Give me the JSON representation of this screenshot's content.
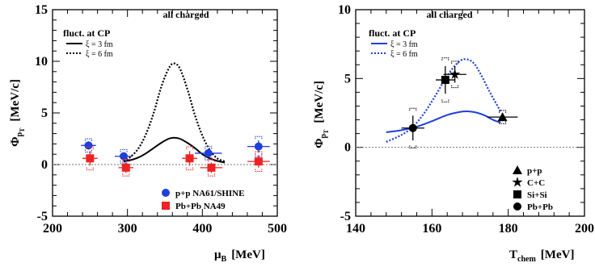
{
  "chart_data": [
    {
      "type": "line",
      "panel": "left",
      "title": "all charged",
      "legend_heading": "fluct. at CP",
      "xlabel": {
        "main": "μ",
        "sub": "B",
        "unit": "[MeV]"
      },
      "ylabel": {
        "main": "Φ",
        "sub": "p",
        "subsub": "T",
        "unit": "[MeV/c]"
      },
      "xlim": [
        200,
        500
      ],
      "ylim": [
        -5,
        15
      ],
      "xticks": [
        "200",
        "300",
        "400",
        "500"
      ],
      "yticks": [
        "-5",
        "0",
        "5",
        "10",
        "15"
      ],
      "series": [
        {
          "name": "ξ = 3 fm",
          "style": "solid",
          "color": "#000000",
          "x": [
            295,
            305,
            315,
            325,
            335,
            345,
            355,
            362,
            370,
            380,
            390,
            400,
            410,
            420,
            430
          ],
          "y": [
            0.3,
            0.45,
            0.7,
            1.1,
            1.6,
            2.1,
            2.5,
            2.6,
            2.5,
            2.1,
            1.6,
            1.0,
            0.6,
            0.35,
            0.2
          ]
        },
        {
          "name": "ξ = 6 fm",
          "style": "dotted",
          "color": "#000000",
          "x": [
            295,
            305,
            315,
            325,
            335,
            345,
            355,
            362,
            370,
            380,
            390,
            400,
            410,
            420,
            430
          ],
          "y": [
            0.3,
            0.8,
            1.6,
            3.0,
            5.0,
            7.5,
            9.3,
            9.8,
            9.3,
            7.3,
            4.8,
            2.8,
            1.4,
            0.6,
            0.3
          ]
        },
        {
          "name": "p+p NA61/SHINE",
          "style": "points",
          "marker": "circle",
          "color": "#1f3fdc",
          "x": [
            248,
            295,
            408,
            475
          ],
          "y": [
            1.85,
            0.8,
            1.1,
            1.75
          ],
          "xerr": [
            10,
            12,
            18,
            15
          ],
          "yerr": [
            0.4,
            0.4,
            0.4,
            0.6
          ]
        },
        {
          "name": "Pb+Pb NA49",
          "style": "points",
          "marker": "square",
          "color": "#ee2222",
          "x": [
            250,
            298,
            383,
            412,
            475
          ],
          "y": [
            0.6,
            -0.3,
            0.6,
            -0.3,
            0.3
          ],
          "xerr": [
            10,
            10,
            10,
            15,
            15
          ],
          "yerr": [
            0.7,
            0.5,
            0.7,
            0.5,
            0.6
          ]
        }
      ]
    },
    {
      "type": "line",
      "panel": "right",
      "title": "all charged",
      "legend_heading": "fluct. at CP",
      "xlabel": {
        "main": "T",
        "sub": "chem",
        "unit": "[MeV]"
      },
      "ylabel": {
        "main": "Φ",
        "sub": "p",
        "subsub": "T",
        "unit": "[MeV/c]"
      },
      "xlim": [
        140,
        200
      ],
      "ylim": [
        -5,
        10
      ],
      "xticks": [
        "140",
        "160",
        "180",
        "200"
      ],
      "yticks": [
        "-5",
        "0",
        "5",
        "10"
      ],
      "series": [
        {
          "name": "ξ = 3 fm",
          "style": "solid",
          "color": "#1f3fdc",
          "x": [
            148,
            152,
            156,
            160,
            164,
            168,
            170,
            172,
            174,
            176,
            178
          ],
          "y": [
            1.1,
            1.25,
            1.5,
            1.9,
            2.35,
            2.6,
            2.6,
            2.5,
            2.3,
            2.0,
            1.8
          ]
        },
        {
          "name": "ξ = 6 fm",
          "style": "dotted",
          "color": "#1f3fdc",
          "x": [
            148,
            152,
            155,
            158,
            161,
            164,
            167,
            169,
            171,
            173,
            175,
            177,
            178
          ],
          "y": [
            0.4,
            0.9,
            1.5,
            2.5,
            3.8,
            5.2,
            6.2,
            6.4,
            6.1,
            5.2,
            4.1,
            3.1,
            2.6
          ]
        },
        {
          "name": "p+p",
          "style": "points",
          "marker": "triangle",
          "color": "#000000",
          "x": [
            178.5
          ],
          "y": [
            2.2
          ],
          "xerr": [
            4
          ],
          "yerr": [
            0.3
          ]
        },
        {
          "name": "C+C",
          "style": "points",
          "marker": "star",
          "color": "#000000",
          "x": [
            166
          ],
          "y": [
            5.3
          ],
          "xerr": [
            3
          ],
          "yerr": [
            0.6
          ]
        },
        {
          "name": "Si+Si",
          "style": "points",
          "marker": "square",
          "color": "#000000",
          "x": [
            163.5
          ],
          "y": [
            4.9
          ],
          "xerr": [
            2.5
          ],
          "yerr": [
            1.0
          ]
        },
        {
          "name": "Pb+Pb",
          "style": "points",
          "marker": "circle",
          "color": "#000000",
          "x": [
            155
          ],
          "y": [
            1.4
          ],
          "xerr": [
            3
          ],
          "yerr": [
            0.9
          ]
        }
      ]
    }
  ]
}
